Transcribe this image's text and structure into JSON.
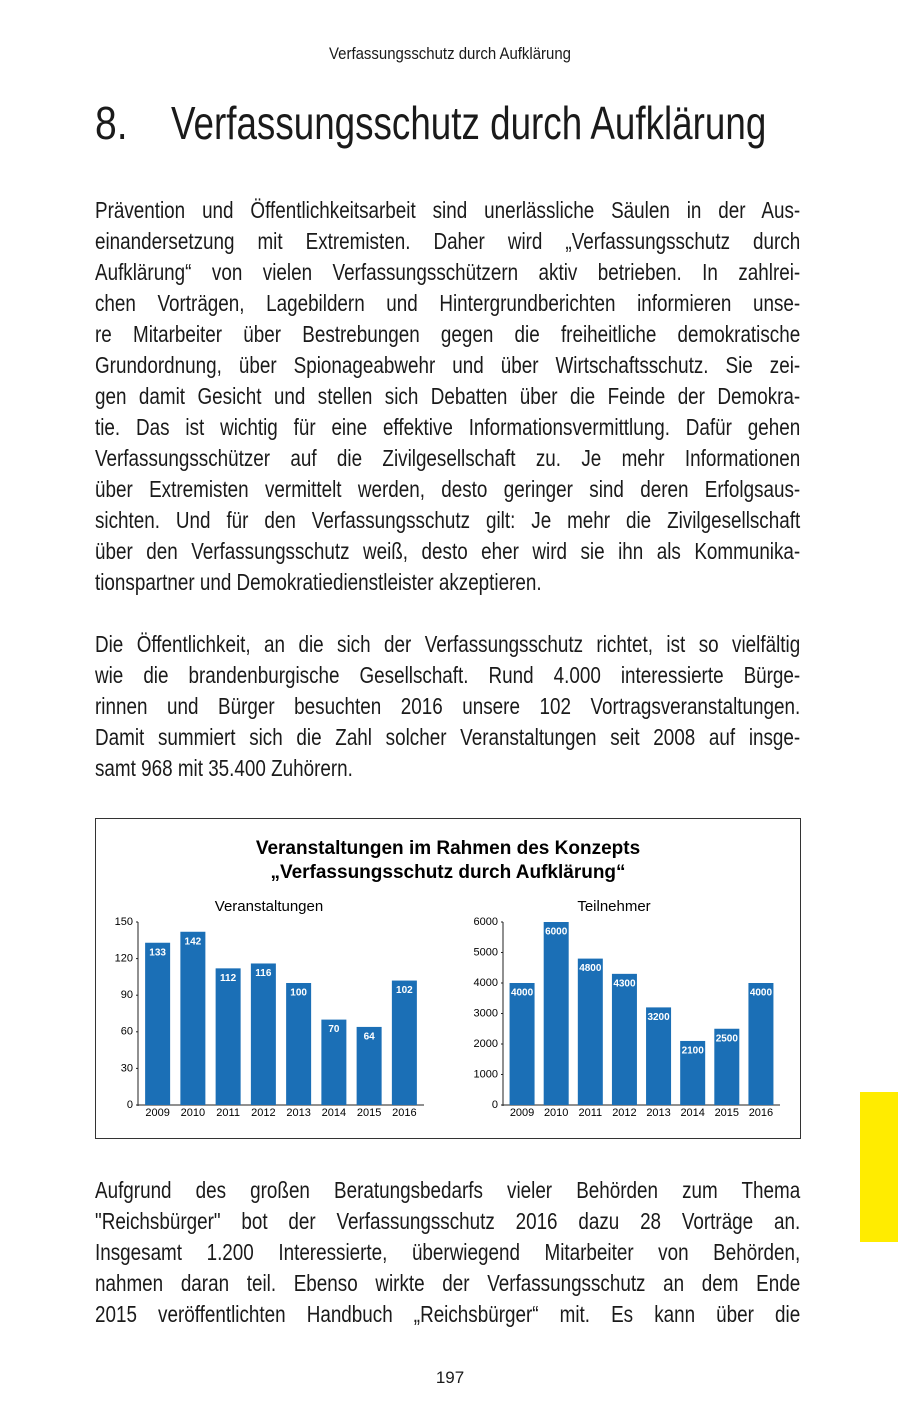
{
  "header": "Verfassungsschutz durch Aufklärung",
  "heading": {
    "number": "8.",
    "text": "Verfassungsschutz durch Aufklärung"
  },
  "paragraphs_before": [
    [
      "Prävention und Öffentlichkeitsarbeit sind unerlässliche Säulen in der Aus-",
      "einandersetzung mit Extremisten. Daher wird „Verfassungsschutz durch",
      "Aufklärung“ von vielen Verfassungsschützern aktiv betrieben. In zahlrei-",
      "chen Vorträgen, Lagebildern und Hintergrundberichten informieren unse-",
      "re Mitarbeiter über Bestrebungen gegen die freiheitliche demokratische",
      "Grundordnung, über Spionageabwehr und über Wirtschaftsschutz. Sie zei-",
      "gen damit Gesicht und stellen sich Debatten über die Feinde der Demokra-",
      "tie. Das ist wichtig für eine effektive Informationsvermittlung. Dafür gehen",
      "Verfassungsschützer auf die Zivilgesellschaft zu. Je mehr Informationen",
      "über Extremisten vermittelt werden, desto geringer sind deren Erfolgsaus-",
      "sichten. Und für den Verfassungsschutz gilt: Je mehr die Zivilgesellschaft",
      "über den Verfassungsschutz weiß, desto eher wird sie ihn als Kommunika-",
      "tionspartner und Demokratiedienstleister akzeptieren."
    ],
    [
      "Die Öffentlichkeit, an die sich der Verfassungsschutz richtet, ist so vielfältig",
      "wie die brandenburgische Gesellschaft. Rund 4.000 interessierte Bürge-",
      "rinnen und Bürger besuchten 2016 unsere 102 Vortragsveranstaltungen.",
      "Damit summiert sich die Zahl solcher Veranstaltungen seit 2008 auf insge-",
      "samt 968 mit 35.400 Zuhörern."
    ]
  ],
  "figure_title": [
    "Veranstaltungen im Rahmen des Konzepts",
    "„Verfassungsschutz durch Aufklärung“"
  ],
  "chart_data": [
    {
      "type": "bar",
      "title": "Veranstaltungen",
      "categories": [
        "2009",
        "2010",
        "2011",
        "2012",
        "2013",
        "2014",
        "2015",
        "2016"
      ],
      "values": [
        133,
        142,
        112,
        116,
        100,
        70,
        64,
        102
      ],
      "color": "#1b6fb6",
      "ylim": [
        0,
        150
      ],
      "yticks": [
        0,
        30,
        60,
        90,
        120,
        150
      ]
    },
    {
      "type": "bar",
      "title": "Teilnehmer",
      "categories": [
        "2009",
        "2010",
        "2011",
        "2012",
        "2013",
        "2014",
        "2015",
        "2016"
      ],
      "values": [
        4000,
        6000,
        4800,
        4300,
        3200,
        2100,
        2500,
        4000
      ],
      "color": "#1b6fb6",
      "ylim": [
        0,
        6000
      ],
      "yticks": [
        0,
        1000,
        2000,
        3000,
        4000,
        5000,
        6000
      ]
    }
  ],
  "paragraphs_after": [
    [
      "Aufgrund des großen Beratungsbedarfs vieler Behörden zum Thema",
      "\"Reichsbürger\" bot der Verfassungsschutz 2016 dazu 28 Vorträge an.",
      "Insgesamt 1.200 Interessierte, überwiegend Mitarbeiter von Behörden,",
      "nahmen daran teil. Ebenso wirkte der Verfassungsschutz an dem Ende",
      "2015 veröffentlichten Handbuch „Reichsbürger“ mit. Es kann über die"
    ]
  ],
  "page_number": "197"
}
